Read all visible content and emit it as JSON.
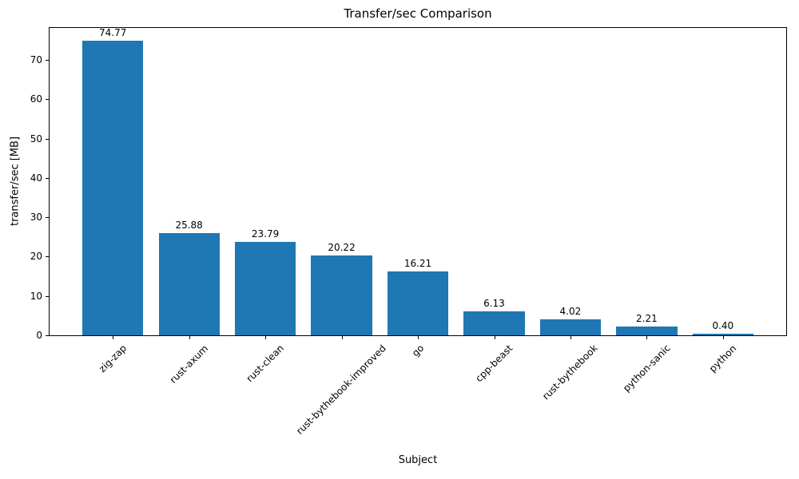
{
  "chart_data": {
    "type": "bar",
    "title": "Transfer/sec Comparison",
    "xlabel": "Subject",
    "ylabel": "transfer/sec [MB]",
    "categories": [
      "zig-zap",
      "rust-axum",
      "rust-clean",
      "rust-bythebook-improved",
      "go",
      "cpp-beast",
      "rust-bythebook",
      "python-sanic",
      "python"
    ],
    "values": [
      74.77,
      25.88,
      23.79,
      20.22,
      16.21,
      6.13,
      4.02,
      2.21,
      0.4
    ],
    "value_labels": [
      "74.77",
      "25.88",
      "23.79",
      "20.22",
      "16.21",
      "6.13",
      "4.02",
      "2.21",
      "0.40"
    ],
    "yticks": [
      0,
      10,
      20,
      30,
      40,
      50,
      60,
      70
    ],
    "ylim": [
      0,
      78.5
    ],
    "xtick_rotation_deg": 45,
    "bar_width_fraction": 0.8,
    "bar_color": "#1f77b4",
    "text_color": "#000000",
    "spine_color": "#000000",
    "background_color": "#ffffff",
    "grid": false,
    "legend": null
  }
}
